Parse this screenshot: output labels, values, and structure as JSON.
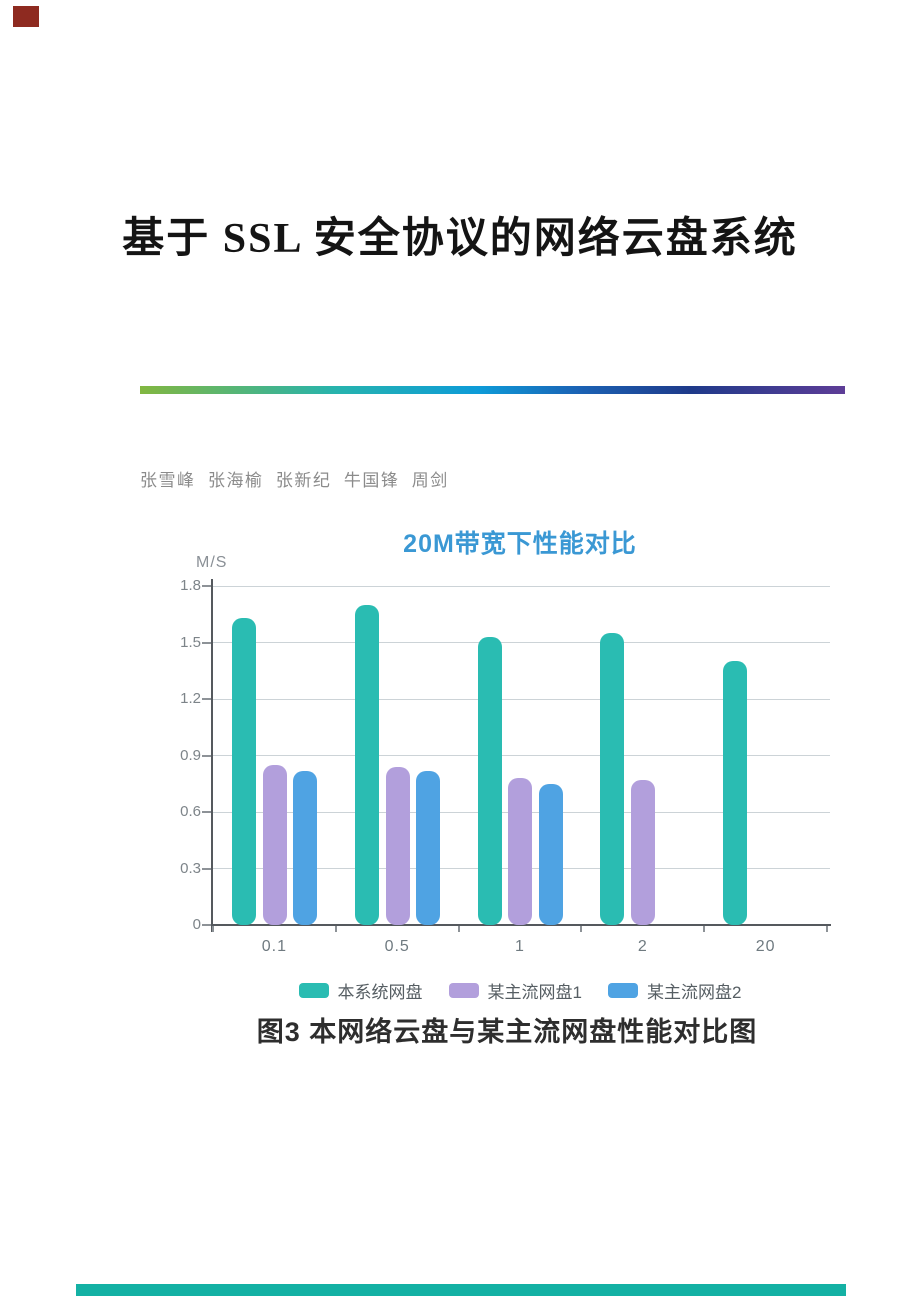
{
  "page": {
    "title": "基于 SSL 安全协议的网络云盘系统",
    "authors": "张雪峰  张海榆  张新纪  牛国锋  周剑",
    "figure_caption": "图3 本网络云盘与某主流网盘性能对比图"
  },
  "decor": {
    "corner_mark_color": "#8e2a20",
    "divider_gradient": [
      "#82b741",
      "#26b3ae",
      "#0d9bd8",
      "#1b63b5",
      "#1e3a8a",
      "#5e3d97"
    ],
    "footer_bar_color": "#14b1a4"
  },
  "chart_data": {
    "type": "bar",
    "title": "20M带宽下性能对比",
    "title_color": "#3a98d4",
    "xlabel": "",
    "ylabel": "M/S",
    "categories": [
      "0.1",
      "0.5",
      "1",
      "2",
      "20"
    ],
    "series": [
      {
        "name": "本系统网盘",
        "color": "#2abcb2",
        "values": [
          1.63,
          1.7,
          1.53,
          1.55,
          1.4
        ]
      },
      {
        "name": "某主流网盘1",
        "color": "#b29fdc",
        "values": [
          0.85,
          0.84,
          0.78,
          0.77,
          null
        ]
      },
      {
        "name": "某主流网盘2",
        "color": "#4fa3e3",
        "values": [
          0.82,
          0.82,
          0.75,
          null,
          null
        ]
      }
    ],
    "ylim": [
      0,
      1.8
    ],
    "yticks": [
      0,
      0.3,
      0.6,
      0.9,
      1.2,
      1.5,
      1.8
    ],
    "grid": true,
    "legend_position": "bottom"
  }
}
